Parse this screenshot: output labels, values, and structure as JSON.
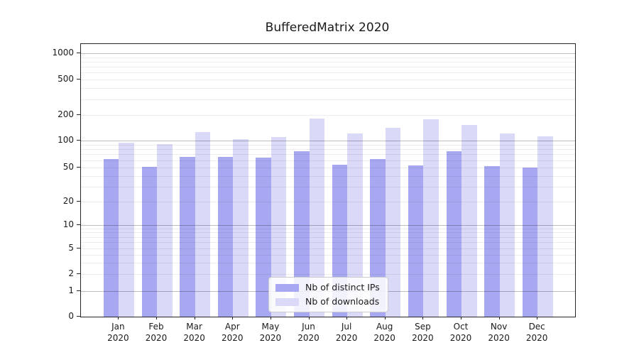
{
  "figure": {
    "title": "BufferedMatrix 2020"
  },
  "chart_data": {
    "type": "bar",
    "title": "BufferedMatrix 2020",
    "categories": [
      "Jan",
      "Feb",
      "Mar",
      "Apr",
      "May",
      "Jun",
      "Jul",
      "Aug",
      "Sep",
      "Oct",
      "Nov",
      "Dec"
    ],
    "category_year_suffix": "2020",
    "series": [
      {
        "name": "Nb of distinct IPs",
        "color": "#a8a8f2",
        "values": [
          62,
          51,
          66,
          65,
          64,
          76,
          54,
          62,
          53,
          76,
          52,
          50
        ]
      },
      {
        "name": "Nb of downloads",
        "color": "#dadaf8",
        "values": [
          94,
          91,
          125,
          104,
          110,
          182,
          120,
          140,
          177,
          151,
          121,
          113
        ]
      }
    ],
    "xlabel": "",
    "ylabel": "",
    "y_axis": {
      "scale": "symlog",
      "ylim": [
        0,
        1000
      ],
      "tick_values": [
        0,
        1,
        2,
        5,
        10,
        20,
        50,
        100,
        200,
        500,
        1000
      ],
      "tick_labels": [
        "0",
        "1",
        "2",
        "5",
        "10",
        "20",
        "50",
        "100",
        "200",
        "500",
        "1000"
      ]
    },
    "grid": {
      "horizontal": true,
      "vertical": false,
      "major_lines": [
        1,
        10,
        100,
        1000
      ],
      "minor_lines": [
        2,
        3,
        4,
        5,
        6,
        7,
        8,
        9,
        20,
        30,
        40,
        50,
        60,
        70,
        80,
        90,
        200,
        300,
        400,
        500,
        600,
        700,
        800,
        900
      ]
    },
    "legend": {
      "position": "lower center",
      "entries": [
        "Nb of distinct IPs",
        "Nb of downloads"
      ]
    }
  }
}
